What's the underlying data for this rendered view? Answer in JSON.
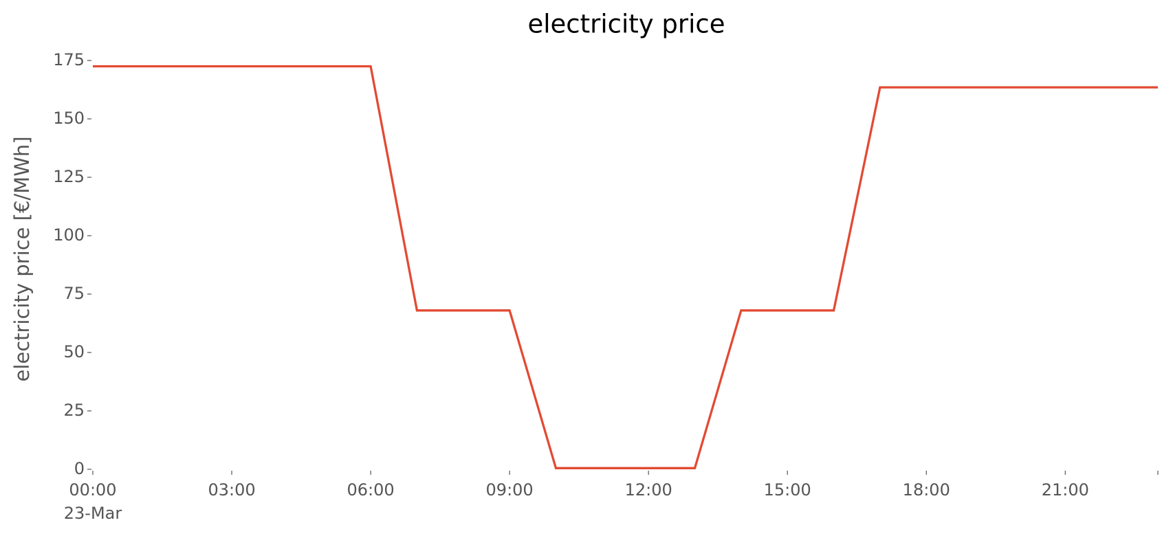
{
  "chart_data": {
    "type": "line",
    "title": "electricity price",
    "ylabel": "electricity price [€/MWh]",
    "x": [
      "00:00",
      "01:00",
      "02:00",
      "03:00",
      "04:00",
      "05:00",
      "06:00",
      "07:00",
      "08:00",
      "09:00",
      "10:00",
      "11:00",
      "12:00",
      "13:00",
      "14:00",
      "15:00",
      "16:00",
      "17:00",
      "18:00",
      "19:00",
      "20:00",
      "21:00",
      "22:00",
      "23:00"
    ],
    "series": [
      {
        "name": "electricity price",
        "color": "#e24a33",
        "values": [
          172.5,
          172.5,
          172.5,
          172.5,
          172.5,
          172.5,
          172.5,
          68,
          68,
          68,
          0.5,
          0.5,
          0.5,
          0.5,
          68,
          68,
          68,
          163.5,
          163.5,
          163.5,
          163.5,
          163.5,
          163.5,
          163.5
        ]
      }
    ],
    "xlim": [
      "00:00",
      "23:00"
    ],
    "xticks": [
      {
        "value": "00:00",
        "label": "00:00"
      },
      {
        "value": "03:00",
        "label": "03:00"
      },
      {
        "value": "06:00",
        "label": "06:00"
      },
      {
        "value": "09:00",
        "label": "09:00"
      },
      {
        "value": "12:00",
        "label": "12:00"
      },
      {
        "value": "15:00",
        "label": "15:00"
      },
      {
        "value": "18:00",
        "label": "18:00"
      },
      {
        "value": "21:00",
        "label": "21:00"
      },
      {
        "value": "23:00",
        "label": null
      }
    ],
    "x_date_label": "23-Mar",
    "ylim": [
      0,
      175
    ],
    "yticks": [
      0,
      25,
      50,
      75,
      100,
      125,
      150,
      175
    ],
    "grid": false
  }
}
